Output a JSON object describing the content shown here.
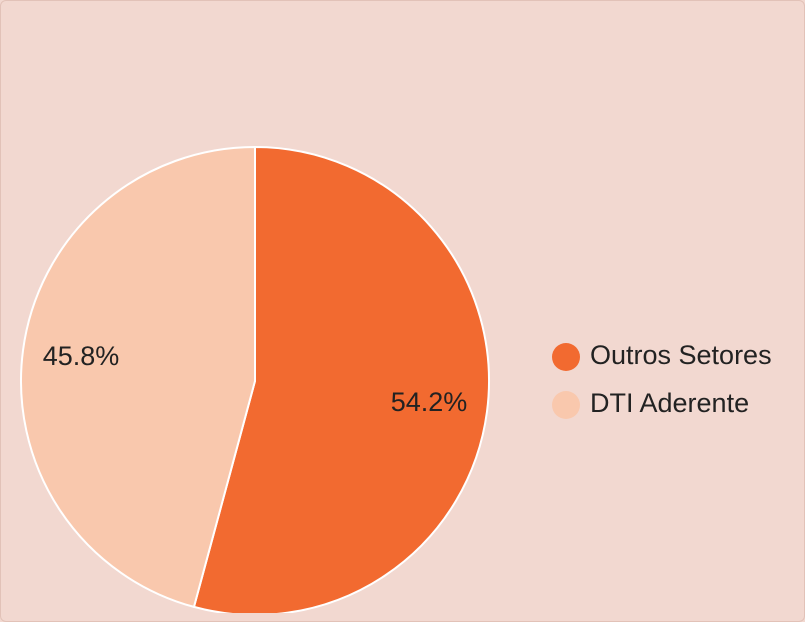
{
  "chart_data": {
    "type": "pie",
    "categories": [
      "Outros Setores",
      "DTI Aderente"
    ],
    "values": [
      54.2,
      45.8
    ],
    "value_labels": [
      "54.2%",
      "45.8%"
    ],
    "colors": [
      "#f26a30",
      "#f9c8ad"
    ],
    "legend": "right"
  }
}
